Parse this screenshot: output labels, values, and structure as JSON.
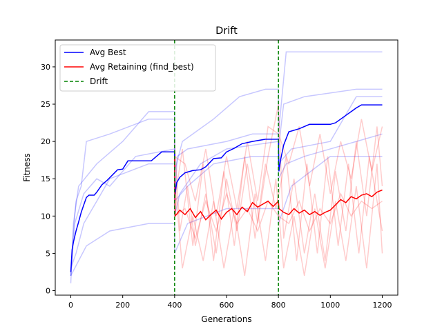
{
  "chart_data": {
    "type": "line",
    "title": "Drift",
    "xlabel": "Generations",
    "ylabel": "Fitness",
    "xlim": [
      -60,
      1260
    ],
    "ylim": [
      -0.6,
      33.6
    ],
    "xticks": [
      0,
      200,
      400,
      600,
      800,
      1000,
      1200
    ],
    "yticks": [
      0,
      5,
      10,
      15,
      20,
      25,
      30
    ],
    "grid": false,
    "legend_position": "top-left",
    "drift_points": [
      400,
      800
    ],
    "series": [
      {
        "name": "Avg Best",
        "color": "#0000ff",
        "style": "solid",
        "points": [
          [
            0,
            2.5
          ],
          [
            5,
            5.5
          ],
          [
            10,
            6.5
          ],
          [
            20,
            8
          ],
          [
            30,
            9.2
          ],
          [
            40,
            10.5
          ],
          [
            50,
            11.5
          ],
          [
            60,
            12.5
          ],
          [
            70,
            12.8
          ],
          [
            90,
            12.8
          ],
          [
            100,
            13.2
          ],
          [
            120,
            14.2
          ],
          [
            140,
            14.8
          ],
          [
            160,
            15.5
          ],
          [
            180,
            16.2
          ],
          [
            200,
            16.3
          ],
          [
            220,
            17.4
          ],
          [
            310,
            17.4
          ],
          [
            330,
            18
          ],
          [
            350,
            18.6
          ],
          [
            400,
            18.6
          ],
          [
            402,
            13
          ],
          [
            408,
            14.5
          ],
          [
            420,
            15.2
          ],
          [
            440,
            15.8
          ],
          [
            470,
            16.1
          ],
          [
            500,
            16.2
          ],
          [
            520,
            16.6
          ],
          [
            550,
            17.7
          ],
          [
            580,
            17.8
          ],
          [
            600,
            18.6
          ],
          [
            630,
            19.1
          ],
          [
            660,
            19.7
          ],
          [
            700,
            20
          ],
          [
            750,
            20.3
          ],
          [
            800,
            20.3
          ],
          [
            802,
            16
          ],
          [
            808,
            17.5
          ],
          [
            820,
            19.5
          ],
          [
            840,
            21.3
          ],
          [
            880,
            21.7
          ],
          [
            920,
            22.3
          ],
          [
            1000,
            22.3
          ],
          [
            1020,
            22.5
          ],
          [
            1060,
            23.5
          ],
          [
            1100,
            24.5
          ],
          [
            1120,
            24.9
          ],
          [
            1200,
            24.9
          ]
        ]
      },
      {
        "name": "Avg Retaining (find_best)",
        "color": "#ff0000",
        "style": "solid",
        "points": [
          [
            400,
            18
          ],
          [
            402,
            10
          ],
          [
            420,
            10.8
          ],
          [
            440,
            10.2
          ],
          [
            460,
            11
          ],
          [
            480,
            9.8
          ],
          [
            500,
            10.6
          ],
          [
            520,
            9.5
          ],
          [
            540,
            10.2
          ],
          [
            560,
            10.8
          ],
          [
            580,
            9.6
          ],
          [
            600,
            10.5
          ],
          [
            620,
            11
          ],
          [
            640,
            10.2
          ],
          [
            660,
            11.2
          ],
          [
            680,
            10.6
          ],
          [
            700,
            11.8
          ],
          [
            720,
            11.2
          ],
          [
            740,
            11.6
          ],
          [
            760,
            12
          ],
          [
            780,
            11.3
          ],
          [
            800,
            12
          ],
          [
            802,
            11
          ],
          [
            820,
            10.5
          ],
          [
            840,
            10.2
          ],
          [
            860,
            11
          ],
          [
            880,
            10.4
          ],
          [
            900,
            10.8
          ],
          [
            920,
            10.2
          ],
          [
            940,
            10.6
          ],
          [
            960,
            10.1
          ],
          [
            980,
            10.5
          ],
          [
            1000,
            10.8
          ],
          [
            1020,
            11.5
          ],
          [
            1040,
            12.2
          ],
          [
            1060,
            11.8
          ],
          [
            1080,
            12.6
          ],
          [
            1100,
            12.3
          ],
          [
            1120,
            12.8
          ],
          [
            1140,
            13
          ],
          [
            1160,
            12.6
          ],
          [
            1180,
            13.2
          ],
          [
            1200,
            13.5
          ]
        ]
      },
      {
        "name": "Drift",
        "color": "#008000",
        "style": "dashed"
      }
    ],
    "individual_runs": [
      {
        "color": "#0000ff",
        "points": [
          [
            0,
            2
          ],
          [
            10,
            8
          ],
          [
            20,
            12
          ],
          [
            40,
            14
          ],
          [
            60,
            20
          ],
          [
            150,
            21
          ],
          [
            300,
            23
          ],
          [
            400,
            23
          ],
          [
            400,
            11
          ],
          [
            410,
            18
          ],
          [
            450,
            19
          ],
          [
            600,
            20
          ],
          [
            700,
            21
          ],
          [
            800,
            21
          ],
          [
            800,
            19
          ],
          [
            820,
            25
          ],
          [
            900,
            26
          ],
          [
            1100,
            27
          ],
          [
            1200,
            27
          ]
        ]
      },
      {
        "color": "#0000ff",
        "points": [
          [
            0,
            1
          ],
          [
            10,
            9
          ],
          [
            30,
            14
          ],
          [
            100,
            17
          ],
          [
            200,
            20
          ],
          [
            300,
            24
          ],
          [
            400,
            24
          ],
          [
            400,
            16
          ],
          [
            430,
            20
          ],
          [
            550,
            23
          ],
          [
            650,
            26
          ],
          [
            750,
            27
          ],
          [
            800,
            27
          ],
          [
            800,
            21
          ],
          [
            830,
            32
          ],
          [
            1200,
            32
          ]
        ]
      },
      {
        "color": "#0000ff",
        "points": [
          [
            0,
            3
          ],
          [
            20,
            5
          ],
          [
            50,
            9
          ],
          [
            100,
            12
          ],
          [
            150,
            15
          ],
          [
            300,
            17
          ],
          [
            400,
            17
          ],
          [
            400,
            12
          ],
          [
            450,
            14
          ],
          [
            550,
            17
          ],
          [
            700,
            18
          ],
          [
            800,
            18
          ],
          [
            800,
            17
          ],
          [
            850,
            19
          ],
          [
            1000,
            20
          ],
          [
            1100,
            26
          ],
          [
            1200,
            26
          ]
        ]
      },
      {
        "color": "#0000ff",
        "points": [
          [
            0,
            2
          ],
          [
            30,
            4
          ],
          [
            60,
            6
          ],
          [
            150,
            8
          ],
          [
            300,
            9
          ],
          [
            400,
            9
          ],
          [
            400,
            5
          ],
          [
            450,
            9
          ],
          [
            600,
            11
          ],
          [
            800,
            11
          ],
          [
            800,
            9
          ],
          [
            850,
            14
          ],
          [
            1000,
            18
          ],
          [
            1200,
            18
          ]
        ]
      },
      {
        "color": "#0000ff",
        "points": [
          [
            0,
            2
          ],
          [
            15,
            9
          ],
          [
            50,
            13
          ],
          [
            100,
            15
          ],
          [
            150,
            14
          ],
          [
            250,
            18
          ],
          [
            400,
            19
          ],
          [
            400,
            10
          ],
          [
            420,
            13
          ],
          [
            500,
            17
          ],
          [
            600,
            19
          ],
          [
            800,
            20
          ],
          [
            800,
            15
          ],
          [
            830,
            17
          ],
          [
            900,
            18
          ],
          [
            1200,
            21
          ]
        ]
      },
      {
        "color": "#ff0000",
        "points": [
          [
            400,
            20
          ],
          [
            420,
            8
          ],
          [
            450,
            14
          ],
          [
            480,
            6
          ],
          [
            520,
            13
          ],
          [
            560,
            5
          ],
          [
            600,
            15
          ],
          [
            640,
            8
          ],
          [
            680,
            17
          ],
          [
            720,
            9
          ],
          [
            760,
            18
          ],
          [
            800,
            25
          ],
          [
            820,
            7
          ],
          [
            860,
            15
          ],
          [
            900,
            5
          ],
          [
            940,
            13
          ],
          [
            980,
            4
          ],
          [
            1020,
            16
          ],
          [
            1060,
            8
          ],
          [
            1100,
            20
          ],
          [
            1140,
            10
          ],
          [
            1180,
            22
          ],
          [
            1200,
            14
          ]
        ]
      },
      {
        "color": "#ff0000",
        "points": [
          [
            400,
            15
          ],
          [
            430,
            3
          ],
          [
            470,
            10
          ],
          [
            510,
            4
          ],
          [
            550,
            12
          ],
          [
            590,
            3
          ],
          [
            630,
            11
          ],
          [
            670,
            2
          ],
          [
            710,
            13
          ],
          [
            750,
            4
          ],
          [
            790,
            15
          ],
          [
            820,
            3
          ],
          [
            860,
            10
          ],
          [
            900,
            2
          ],
          [
            940,
            11
          ],
          [
            980,
            3
          ],
          [
            1020,
            12
          ],
          [
            1060,
            4
          ],
          [
            1100,
            14
          ],
          [
            1140,
            3
          ],
          [
            1180,
            17
          ],
          [
            1200,
            5
          ]
        ]
      },
      {
        "color": "#ff0000",
        "points": [
          [
            400,
            18
          ],
          [
            440,
            17
          ],
          [
            480,
            12
          ],
          [
            520,
            19
          ],
          [
            560,
            10
          ],
          [
            600,
            18
          ],
          [
            640,
            11
          ],
          [
            680,
            20
          ],
          [
            720,
            12
          ],
          [
            760,
            22
          ],
          [
            800,
            21
          ],
          [
            840,
            17
          ],
          [
            880,
            22
          ],
          [
            920,
            14
          ],
          [
            960,
            21
          ],
          [
            1000,
            13
          ],
          [
            1040,
            20
          ],
          [
            1080,
            15
          ],
          [
            1120,
            23
          ],
          [
            1160,
            16
          ],
          [
            1200,
            22
          ]
        ]
      },
      {
        "color": "#ff0000",
        "points": [
          [
            400,
            10
          ],
          [
            440,
            11
          ],
          [
            480,
            7
          ],
          [
            520,
            12
          ],
          [
            560,
            8
          ],
          [
            600,
            13
          ],
          [
            640,
            9
          ],
          [
            680,
            11
          ],
          [
            720,
            8
          ],
          [
            760,
            12
          ],
          [
            800,
            10
          ],
          [
            840,
            9
          ],
          [
            880,
            12
          ],
          [
            920,
            8
          ],
          [
            960,
            11
          ],
          [
            1000,
            9
          ],
          [
            1040,
            13
          ],
          [
            1080,
            10
          ],
          [
            1120,
            12
          ],
          [
            1160,
            11
          ],
          [
            1200,
            12
          ]
        ]
      },
      {
        "color": "#ff0000",
        "points": [
          [
            400,
            12
          ],
          [
            430,
            19
          ],
          [
            470,
            6
          ],
          [
            510,
            17
          ],
          [
            550,
            4
          ],
          [
            590,
            16
          ],
          [
            630,
            6
          ],
          [
            670,
            18
          ],
          [
            710,
            7
          ],
          [
            750,
            17
          ],
          [
            790,
            11
          ],
          [
            830,
            18
          ],
          [
            870,
            4
          ],
          [
            910,
            17
          ],
          [
            950,
            5
          ],
          [
            990,
            18
          ],
          [
            1030,
            6
          ],
          [
            1070,
            17
          ],
          [
            1110,
            5
          ],
          [
            1150,
            18
          ],
          [
            1200,
            8
          ]
        ]
      }
    ]
  }
}
